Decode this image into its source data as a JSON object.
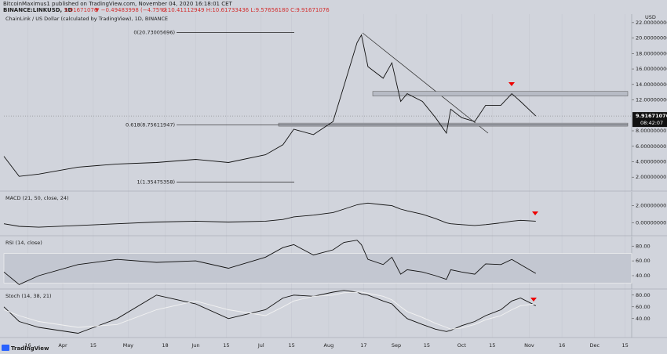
{
  "header": {
    "line1": "BitcoinMaximus1 published on TradingView.com, November 04, 2020 16:18:01 CET",
    "symbol": "BINANCE:LINKUSD, 1D",
    "price": "9.91671076",
    "change": "▼ −0.49483998 (−4.75%)",
    "ohlc": "O:10.41112949  H:10.61733436  L:9.57656180  C:9.91671076"
  },
  "footer": {
    "brand": "TradingView"
  },
  "chart_data": [
    {
      "type": "line",
      "title": "ChainLink / US Dollar (calculated by TradingView), 1D, BINANCE",
      "y_unit": "USD",
      "x": [
        "2020-03-05",
        "2020-03-12",
        "2020-03-21",
        "2020-04-08",
        "2020-04-26",
        "2020-05-14",
        "2020-06-01",
        "2020-06-16",
        "2020-07-03",
        "2020-07-11",
        "2020-07-16",
        "2020-07-25",
        "2020-08-03",
        "2020-08-08",
        "2020-08-14",
        "2020-08-16",
        "2020-08-19",
        "2020-08-26",
        "2020-08-30",
        "2020-09-03",
        "2020-09-06",
        "2020-09-13",
        "2020-09-19",
        "2020-09-24",
        "2020-09-26",
        "2020-10-01",
        "2020-10-07",
        "2020-10-12",
        "2020-10-19",
        "2020-10-24",
        "2020-10-28",
        "2020-11-04"
      ],
      "series": [
        {
          "name": "LINKUSD",
          "color": "#111111",
          "values": [
            4.7,
            2.1,
            2.4,
            3.3,
            3.7,
            3.9,
            4.3,
            3.9,
            4.9,
            6.2,
            8.2,
            7.5,
            9.2,
            13.8,
            19.4,
            20.4,
            16.3,
            14.8,
            16.8,
            11.8,
            12.8,
            11.8,
            9.7,
            7.7,
            10.8,
            9.7,
            9.2,
            11.3,
            11.3,
            12.8,
            11.8,
            9.91671076
          ]
        }
      ],
      "xlim": [
        "2020-03-05",
        "2020-12-18"
      ],
      "ylim": [
        0.3,
        23.1
      ],
      "yticks": [
        {
          "value": 2,
          "label": "2.00000000"
        },
        {
          "value": 4,
          "label": "4.00000000"
        },
        {
          "value": 6,
          "label": "6.00000000"
        },
        {
          "value": 8,
          "label": "8.00000000"
        },
        {
          "value": 12,
          "label": "12.00000000"
        },
        {
          "value": 14,
          "label": "14.00000000"
        },
        {
          "value": 16,
          "label": "16.00000000"
        },
        {
          "value": 18,
          "label": "18.00000000"
        },
        {
          "value": 20,
          "label": "20.00000000"
        },
        {
          "value": 22,
          "label": "22.00000000"
        }
      ],
      "annotations": [
        {
          "label": "0(20.73005696)",
          "value": 20.73005696
        },
        {
          "label": "0.618(8.75611947)",
          "value": 8.75611947
        },
        {
          "label": "1(1.35475358)",
          "value": 1.35475358
        }
      ],
      "zones": [
        [
          12.5,
          13.1
        ],
        [
          8.6,
          9.0
        ]
      ],
      "last_price": 9.91671076,
      "countdown": "08:42:07"
    },
    {
      "type": "line",
      "title": "MACD (21, 50, close, 24)",
      "x": [
        "2020-03-05",
        "2020-03-12",
        "2020-03-21",
        "2020-04-08",
        "2020-04-26",
        "2020-05-14",
        "2020-06-01",
        "2020-06-16",
        "2020-07-03",
        "2020-07-11",
        "2020-07-16",
        "2020-07-25",
        "2020-08-03",
        "2020-08-08",
        "2020-08-14",
        "2020-08-16",
        "2020-08-19",
        "2020-08-26",
        "2020-08-30",
        "2020-09-03",
        "2020-09-06",
        "2020-09-13",
        "2020-09-19",
        "2020-09-24",
        "2020-09-26",
        "2020-10-01",
        "2020-10-07",
        "2020-10-12",
        "2020-10-19",
        "2020-10-24",
        "2020-10-28",
        "2020-11-04"
      ],
      "series": [
        {
          "name": "MACD",
          "color": "#111111",
          "values": [
            -0.1,
            -0.4,
            -0.5,
            -0.3,
            -0.1,
            0.1,
            0.2,
            0.1,
            0.2,
            0.4,
            0.7,
            0.9,
            1.2,
            1.6,
            2.1,
            2.2,
            2.3,
            2.1,
            2.0,
            1.6,
            1.4,
            1.0,
            0.5,
            0.0,
            -0.1,
            -0.2,
            -0.3,
            -0.2,
            0.0,
            0.2,
            0.3,
            0.2
          ]
        }
      ],
      "xlim": [
        "2020-03-05",
        "2020-12-18"
      ],
      "ylim": [
        -1.4,
        3.6
      ],
      "yticks": [
        {
          "value": 0,
          "label": "0.00000000"
        },
        {
          "value": 2,
          "label": "2.00000000"
        }
      ]
    },
    {
      "type": "line",
      "title": "RSI (14, close)",
      "x": [
        "2020-03-05",
        "2020-03-12",
        "2020-03-21",
        "2020-04-08",
        "2020-04-26",
        "2020-05-14",
        "2020-06-01",
        "2020-06-16",
        "2020-07-03",
        "2020-07-11",
        "2020-07-16",
        "2020-07-25",
        "2020-08-03",
        "2020-08-08",
        "2020-08-14",
        "2020-08-16",
        "2020-08-19",
        "2020-08-26",
        "2020-08-30",
        "2020-09-03",
        "2020-09-06",
        "2020-09-13",
        "2020-09-19",
        "2020-09-24",
        "2020-09-26",
        "2020-10-01",
        "2020-10-07",
        "2020-10-12",
        "2020-10-19",
        "2020-10-24",
        "2020-10-28",
        "2020-11-04"
      ],
      "series": [
        {
          "name": "RSI",
          "color": "#111111",
          "values": [
            45,
            28,
            40,
            55,
            62,
            58,
            60,
            50,
            65,
            78,
            82,
            68,
            75,
            85,
            88,
            82,
            62,
            55,
            65,
            42,
            48,
            45,
            40,
            35,
            48,
            45,
            42,
            56,
            55,
            62,
            55,
            43
          ]
        }
      ],
      "xlim": [
        "2020-03-05",
        "2020-12-18"
      ],
      "ylim": [
        23,
        93
      ],
      "bands": [
        30,
        70
      ],
      "yticks": [
        {
          "value": 40,
          "label": "40.00"
        },
        {
          "value": 60,
          "label": "60.00"
        },
        {
          "value": 80,
          "label": "80.00"
        }
      ]
    },
    {
      "type": "line",
      "title": "Stoch (14, 38, 21)",
      "x": [
        "2020-03-05",
        "2020-03-12",
        "2020-03-21",
        "2020-04-08",
        "2020-04-26",
        "2020-05-14",
        "2020-06-01",
        "2020-06-16",
        "2020-07-03",
        "2020-07-11",
        "2020-07-16",
        "2020-07-25",
        "2020-08-03",
        "2020-08-08",
        "2020-08-14",
        "2020-08-16",
        "2020-08-19",
        "2020-08-26",
        "2020-08-30",
        "2020-09-03",
        "2020-09-06",
        "2020-09-13",
        "2020-09-19",
        "2020-09-24",
        "2020-09-26",
        "2020-10-01",
        "2020-10-07",
        "2020-10-12",
        "2020-10-19",
        "2020-10-24",
        "2020-10-28",
        "2020-11-04"
      ],
      "series": [
        {
          "name": "%K",
          "color": "#111111",
          "values": [
            60,
            35,
            25,
            15,
            40,
            80,
            65,
            40,
            55,
            75,
            80,
            78,
            85,
            88,
            85,
            82,
            80,
            70,
            65,
            50,
            40,
            30,
            22,
            18,
            20,
            28,
            35,
            45,
            55,
            70,
            75,
            62
          ]
        },
        {
          "name": "%D",
          "color": "#f2f2f2",
          "values": [
            55,
            45,
            35,
            25,
            30,
            55,
            70,
            55,
            45,
            60,
            70,
            78,
            80,
            84,
            85,
            85,
            83,
            78,
            72,
            60,
            52,
            42,
            32,
            25,
            22,
            24,
            30,
            38,
            45,
            55,
            62,
            65
          ]
        }
      ],
      "xlim": [
        "2020-03-05",
        "2020-12-18"
      ],
      "ylim": [
        9,
        89
      ],
      "yticks": [
        {
          "value": 40,
          "label": "40.00"
        },
        {
          "value": 60,
          "label": "60.00"
        },
        {
          "value": 80,
          "label": "80.00"
        }
      ],
      "xticks": [
        {
          "value": "2020-03-16",
          "label": "16"
        },
        {
          "value": "2020-04-01",
          "label": "Apr"
        },
        {
          "value": "2020-04-15",
          "label": "15"
        },
        {
          "value": "2020-05-01",
          "label": "May"
        },
        {
          "value": "2020-05-18",
          "label": "18"
        },
        {
          "value": "2020-06-01",
          "label": "Jun"
        },
        {
          "value": "2020-06-15",
          "label": "15"
        },
        {
          "value": "2020-07-01",
          "label": "Jul"
        },
        {
          "value": "2020-07-15",
          "label": "15"
        },
        {
          "value": "2020-08-01",
          "label": "Aug"
        },
        {
          "value": "2020-08-17",
          "label": "17"
        },
        {
          "value": "2020-09-01",
          "label": "Sep"
        },
        {
          "value": "2020-09-15",
          "label": "15"
        },
        {
          "value": "2020-10-01",
          "label": "Oct"
        },
        {
          "value": "2020-10-15",
          "label": "15"
        },
        {
          "value": "2020-11-01",
          "label": "Nov"
        },
        {
          "value": "2020-11-16",
          "label": "16"
        },
        {
          "value": "2020-12-01",
          "label": "Dec"
        },
        {
          "value": "2020-12-15",
          "label": "15"
        }
      ]
    }
  ]
}
